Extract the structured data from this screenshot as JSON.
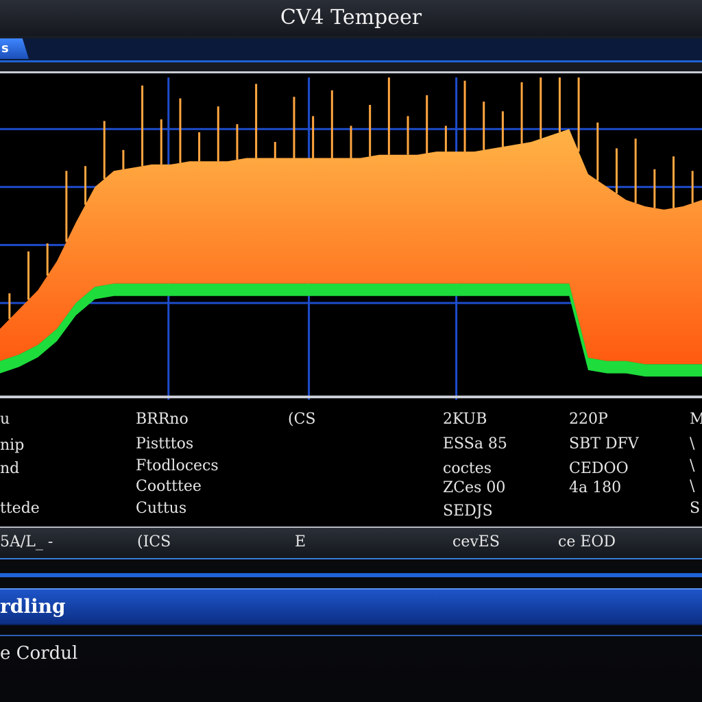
{
  "window": {
    "title": "CV4 Tempeer"
  },
  "tabs": [
    {
      "label": "s",
      "active": true
    }
  ],
  "chart_data": {
    "type": "area",
    "grid": true,
    "colors": {
      "upper": "#ff7a1a",
      "lower": "#1edc3c",
      "grid": "#1e4ccc"
    },
    "series": [
      {
        "values": [
          0.12,
          0.14,
          0.17,
          0.22,
          0.3,
          0.35,
          0.36,
          0.36,
          0.36,
          0.36,
          0.36,
          0.36,
          0.36,
          0.36,
          0.36,
          0.36,
          0.36,
          0.36,
          0.36,
          0.36,
          0.36,
          0.36,
          0.36,
          0.36,
          0.36,
          0.36,
          0.36,
          0.36,
          0.36,
          0.36,
          0.36,
          0.13,
          0.12,
          0.12,
          0.11,
          0.11,
          0.11,
          0.11
        ]
      },
      {
        "values": [
          0.22,
          0.28,
          0.34,
          0.43,
          0.55,
          0.66,
          0.71,
          0.72,
          0.73,
          0.73,
          0.74,
          0.74,
          0.74,
          0.75,
          0.75,
          0.75,
          0.75,
          0.75,
          0.75,
          0.75,
          0.76,
          0.76,
          0.76,
          0.77,
          0.77,
          0.77,
          0.78,
          0.79,
          0.8,
          0.82,
          0.84,
          0.7,
          0.66,
          0.62,
          0.6,
          0.59,
          0.6,
          0.62
        ]
      }
    ],
    "spikes": [
      0.08,
      0.15,
      0.1,
      0.22,
      0.12,
      0.18,
      0.06,
      0.25,
      0.14,
      0.2,
      0.09,
      0.17,
      0.11,
      0.23,
      0.05,
      0.19,
      0.13,
      0.21,
      0.1,
      0.16,
      0.24,
      0.12,
      0.18,
      0.08,
      0.22,
      0.15,
      0.11,
      0.19,
      0.27,
      0.6,
      0.3,
      0.18,
      0.14,
      0.2,
      0.12,
      0.16,
      0.1
    ]
  },
  "readouts": {
    "col1": [
      "u",
      "nip",
      "nd",
      "",
      "ttede"
    ],
    "col2": [
      "BRRno",
      "Pistttos",
      "Ftodlocecs",
      "Cootttee",
      "Cuttus"
    ],
    "col3": [
      "(CS"
    ],
    "col4": [
      "2KUB",
      "ESSa 85",
      "coctes",
      "ZCes 00",
      "SEDJS"
    ],
    "col5": [
      "220P",
      "SBT DFV",
      "CEDOO",
      "4a 180"
    ],
    "col6": [
      "M",
      "\\",
      "\\",
      "\\",
      "S"
    ]
  },
  "statusbar": {
    "items": [
      "5A/L_ -",
      "(ICS",
      "E",
      "cevES",
      "ce EOD"
    ]
  },
  "section": {
    "title": "rdling"
  },
  "footer": {
    "text": "e Cordul"
  }
}
